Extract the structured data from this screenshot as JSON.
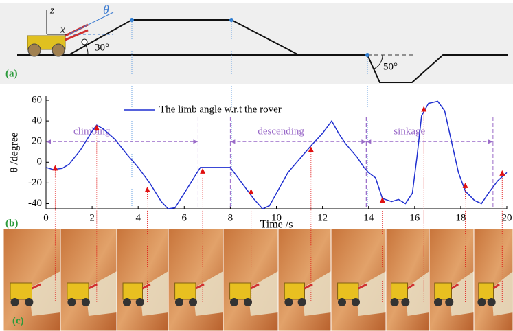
{
  "panel_a": {
    "label": "(a)",
    "axis_z": "z",
    "axis_x": "x",
    "angle_symbol": "θ",
    "slope_up": "30°",
    "slope_down": "50°"
  },
  "chart_data": {
    "type": "line",
    "panel_label": "(b)",
    "x_label": "Time /s",
    "y_label": "θ /degree",
    "xlim": [
      0,
      20
    ],
    "xticks": [
      0,
      2,
      4,
      6,
      8,
      10,
      12,
      14,
      16,
      18,
      20
    ],
    "ylim": [
      -45,
      64
    ],
    "yticks": [
      -40,
      -20,
      0,
      20,
      40,
      60
    ],
    "legend": "top",
    "series": [
      {
        "name": "The limb angle w.r.t the rover",
        "color": "#1f2fd0",
        "x": [
          0,
          0.3,
          0.7,
          1,
          1.5,
          2,
          2.2,
          2.5,
          3,
          3.5,
          4,
          4.5,
          5,
          5.3,
          5.6,
          6,
          6.5,
          6.7,
          7,
          7.5,
          8,
          8.5,
          9,
          9.4,
          9.7,
          10,
          10.5,
          11,
          11.5,
          12,
          12.4,
          12.7,
          13,
          13.5,
          13.8,
          14,
          14.3,
          14.6,
          15,
          15.3,
          15.6,
          15.9,
          16.1,
          16.3,
          16.6,
          17,
          17.3,
          17.6,
          17.9,
          18.2,
          18.6,
          18.9,
          19.2,
          19.6,
          20
        ],
        "values": [
          -5,
          -7,
          -6,
          -2,
          12,
          30,
          36,
          32,
          22,
          8,
          -5,
          -20,
          -38,
          -45,
          -44,
          -30,
          -12,
          -5,
          -5,
          -5,
          -5,
          -20,
          -35,
          -45,
          -42,
          -30,
          -10,
          3,
          16,
          28,
          40,
          28,
          18,
          5,
          -5,
          -10,
          -15,
          -35,
          -38,
          -36,
          -40,
          -30,
          5,
          45,
          57,
          59,
          50,
          20,
          -10,
          -28,
          -37,
          -40,
          -30,
          -18,
          -10
        ]
      }
    ],
    "markers": {
      "color": "#e01010",
      "x": [
        0.4,
        2.2,
        4.4,
        6.8,
        8.9,
        11.5,
        14.6,
        16.4,
        18.2,
        19.8
      ],
      "values": [
        -6,
        33,
        -27,
        -9,
        -29,
        12,
        -37,
        51,
        -23,
        -11
      ]
    },
    "annotations": [
      {
        "text": "climbing",
        "x_start": 0,
        "x_end": 6.6,
        "y": 20
      },
      {
        "text": "descending",
        "x_start": 8,
        "x_end": 13.9,
        "y": 20
      },
      {
        "text": "sinkage",
        "x_start": 13.9,
        "x_end": 19.4,
        "y": 20
      }
    ]
  },
  "panel_c": {
    "label": "(c)"
  }
}
